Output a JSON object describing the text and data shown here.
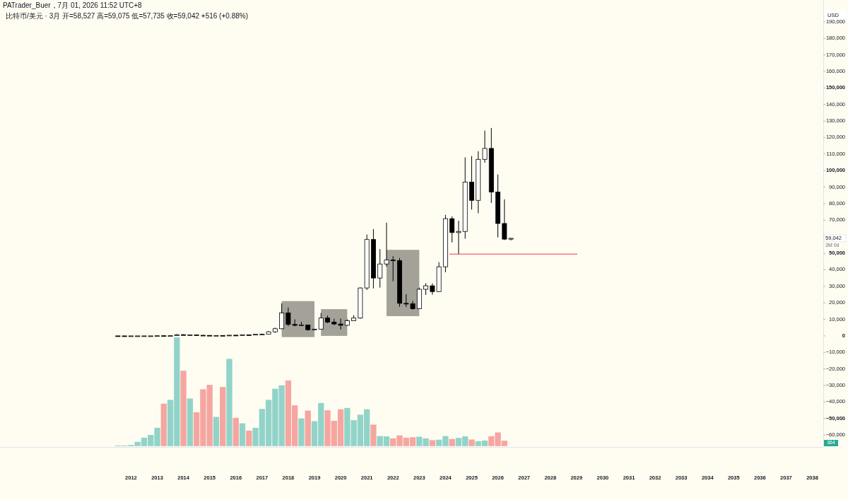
{
  "chart_data": {
    "type": "candlestick",
    "title": "PATrader_Buer，7月 01, 2026 11:52 UTC+8",
    "subtitle": "比特币/美元 · 3月  开=58,527  高=59,075  低=57,735  收=59,042  +516 (+0.88%)",
    "ylabel": "USD",
    "x": [
      "2011-07",
      "2011-10",
      "2012-01",
      "2012-04",
      "2012-07",
      "2012-10",
      "2013-01",
      "2013-04",
      "2013-07",
      "2013-10",
      "2014-01",
      "2014-04",
      "2014-07",
      "2014-10",
      "2015-01",
      "2015-04",
      "2015-07",
      "2015-10",
      "2016-01",
      "2016-04",
      "2016-07",
      "2016-10",
      "2017-01",
      "2017-04",
      "2017-07",
      "2017-10",
      "2018-01",
      "2018-04",
      "2018-07",
      "2018-10",
      "2019-01",
      "2019-04",
      "2019-07",
      "2019-10",
      "2020-01",
      "2020-04",
      "2020-07",
      "2020-10",
      "2021-01",
      "2021-04",
      "2021-07",
      "2021-10",
      "2022-01",
      "2022-04",
      "2022-07",
      "2022-10",
      "2023-01",
      "2023-04",
      "2023-07",
      "2023-10",
      "2024-01",
      "2024-04",
      "2024-07",
      "2024-10",
      "2025-01",
      "2025-04",
      "2025-07",
      "2025-10",
      "2026-01",
      "2026-04",
      "2026-07"
    ],
    "series": [
      {
        "type": "bar",
        "base": [
          -66700,
          -66700,
          -66700,
          -66700,
          -66700,
          -66700,
          -66700,
          -66700,
          -66700,
          -66700,
          -66700,
          -66700,
          -66700,
          -66700,
          -66700,
          -66700,
          -66700,
          -66700,
          -66700,
          -66700,
          -66700,
          -66700,
          -66700,
          -66700,
          -66700,
          -66700,
          -66700,
          -66700,
          -66700,
          -66700,
          -66700,
          -66700,
          -66700,
          -66700,
          -66700,
          -66700,
          -66700,
          -66700,
          -66700,
          -66700,
          -66700,
          -66700,
          -66700,
          -66700,
          -66700,
          -66700,
          -66700,
          -66700,
          -66700,
          -66700,
          -66700,
          -66700,
          -66700,
          -66700,
          -66700,
          -66700,
          -66700,
          -66700,
          -66700,
          -66700,
          null
        ],
        "values": [
          400,
          400,
          700,
          2600,
          5100,
          6800,
          11100,
          25700,
          28000,
          65800,
          45600,
          28800,
          20500,
          34400,
          37100,
          17700,
          35800,
          52800,
          17100,
          13800,
          9400,
          11100,
          22500,
          28000,
          34700,
          36800,
          39700,
          24700,
          16800,
          21500,
          15100,
          26100,
          21700,
          15300,
          22300,
          23100,
          15700,
          19000,
          22300,
          13000,
          6100,
          5900,
          4700,
          6500,
          5100,
          5400,
          5700,
          4700,
          3600,
          3900,
          6100,
          4300,
          5000,
          5900,
          4000,
          3000,
          3400,
          6000,
          8300,
          3300,
          null
        ],
        "colors": [
          "#92d3c9",
          "#92d3c9",
          "#92d3c9",
          "#92d3c9",
          "#92d3c9",
          "#92d3c9",
          "#92d3c9",
          "#f5a6a0",
          "#92d3c9",
          "#92d3c9",
          "#f5a6a0",
          "#92d3c9",
          "#f5a6a0",
          "#f5a6a0",
          "#f5a6a0",
          "#92d3c9",
          "#f5a6a0",
          "#92d3c9",
          "#f5a6a0",
          "#92d3c9",
          "#f5a6a0",
          "#92d3c9",
          "#92d3c9",
          "#92d3c9",
          "#92d3c9",
          "#92d3c9",
          "#f5a6a0",
          "#f5a6a0",
          "#92d3c9",
          "#f5a6a0",
          "#92d3c9",
          "#92d3c9",
          "#f5a6a0",
          "#f5a6a0",
          "#f5a6a0",
          "#92d3c9",
          "#92d3c9",
          "#92d3c9",
          "#92d3c9",
          "#f5a6a0",
          "#92d3c9",
          "#92d3c9",
          "#f5a6a0",
          "#f5a6a0",
          "#f5a6a0",
          "#f5a6a0",
          "#92d3c9",
          "#92d3c9",
          "#f5a6a0",
          "#92d3c9",
          "#92d3c9",
          "#f5a6a0",
          "#92d3c9",
          "#92d3c9",
          "#f5a6a0",
          "#92d3c9",
          "#92d3c9",
          "#f5a6a0",
          "#f5a6a0",
          "#f5a6a0",
          null
        ]
      },
      {
        "color": "#000000",
        "ohlc": [
          [
            13.5,
            17,
            2,
            5.1
          ],
          [
            5.1,
            6.9,
            2,
            4.7
          ],
          [
            4.7,
            7.2,
            4.2,
            4.9
          ],
          [
            4.9,
            7.2,
            4.8,
            6.7
          ],
          [
            6.7,
            15.4,
            6.5,
            12.4
          ],
          [
            12.4,
            14,
            9.6,
            13.5
          ],
          [
            13.5,
            266,
            13.3,
            104
          ],
          [
            104,
            260,
            50,
            97
          ],
          [
            97,
            150,
            65,
            128
          ],
          [
            128,
            1163,
            102,
            732
          ],
          [
            732,
            1000,
            380,
            445
          ],
          [
            445,
            680,
            340,
            640
          ],
          [
            640,
            650,
            370,
            385
          ],
          [
            385,
            450,
            275,
            320
          ],
          [
            320,
            320,
            152,
            244
          ],
          [
            244,
            266,
            212,
            263
          ],
          [
            263,
            317,
            199,
            236
          ],
          [
            236,
            502,
            236,
            430
          ],
          [
            430,
            465,
            352,
            416
          ],
          [
            416,
            780,
            413,
            673
          ],
          [
            673,
            673,
            470,
            609
          ],
          [
            609,
            980,
            604,
            966
          ],
          [
            966,
            1350,
            751,
            1079
          ],
          [
            1079,
            2999,
            1061,
            2480
          ],
          [
            2480,
            5000,
            1800,
            4340
          ],
          [
            4340,
            19666,
            4100,
            13880
          ],
          [
            13880,
            17180,
            5920,
            6930
          ],
          [
            6930,
            9990,
            5750,
            6390
          ],
          [
            6390,
            8500,
            5880,
            6630
          ],
          [
            6630,
            6800,
            3120,
            3740
          ],
          [
            3740,
            4140,
            3350,
            4100
          ],
          [
            4100,
            13880,
            4090,
            10820
          ],
          [
            10820,
            12320,
            7700,
            8290
          ],
          [
            8290,
            10400,
            6520,
            7200
          ],
          [
            7200,
            10500,
            3850,
            6410
          ],
          [
            6410,
            10070,
            6150,
            9130
          ],
          [
            9130,
            12480,
            8990,
            10780
          ],
          [
            10780,
            29300,
            10370,
            29000
          ],
          [
            29000,
            61300,
            27800,
            58300
          ],
          [
            58300,
            64600,
            28700,
            35000
          ],
          [
            35000,
            52500,
            29200,
            43500
          ],
          [
            43500,
            68500,
            41900,
            45900
          ],
          [
            45900,
            48200,
            33100,
            45500
          ],
          [
            45500,
            47100,
            17600,
            19700
          ],
          [
            19700,
            25200,
            17500,
            19400
          ],
          [
            19400,
            21100,
            15800,
            16400
          ],
          [
            16400,
            29200,
            16400,
            28200
          ],
          [
            28200,
            31800,
            24800,
            30300
          ],
          [
            30300,
            31800,
            24900,
            26800
          ],
          [
            26800,
            44600,
            26600,
            41800
          ],
          [
            41800,
            73200,
            38500,
            70900
          ],
          [
            70900,
            72300,
            56500,
            62500
          ],
          [
            62500,
            69700,
            49500,
            63200
          ],
          [
            63200,
            108000,
            58800,
            93000
          ],
          [
            93000,
            108800,
            76400,
            82000
          ],
          [
            82000,
            111700,
            74200,
            106800
          ],
          [
            106800,
            124200,
            104800,
            113400
          ],
          [
            113400,
            125800,
            80400,
            87000
          ],
          [
            87000,
            97600,
            59600,
            68000
          ],
          [
            68000,
            82600,
            58000,
            58527
          ],
          [
            58527,
            59075,
            57735,
            59042
          ]
        ]
      }
    ],
    "xlim": [
      "2007-01",
      "2038-06"
    ],
    "ylim": [
      -67200,
      203200
    ],
    "xticks": [
      "2012",
      "2013",
      "2014",
      "2015",
      "2016",
      "2017",
      "2018",
      "2019",
      "2020",
      "2021",
      "2022",
      "2023",
      "2024",
      "2025",
      "2026",
      "2027",
      "2028",
      "2029",
      "2030",
      "2031",
      "2032",
      "2033",
      "2034",
      "2035",
      "2036",
      "2037",
      "2038"
    ],
    "yticks": [
      {
        "value": -60000,
        "label": "−60,000"
      },
      {
        "value": -50000,
        "label": "−50,000"
      },
      {
        "value": -40000,
        "label": "−40,000"
      },
      {
        "value": -30000,
        "label": "−30,000"
      },
      {
        "value": -20000,
        "label": "−20,000"
      },
      {
        "value": -10000,
        "label": "−10,000"
      },
      0,
      {
        "value": 10000,
        "label": "10,000"
      },
      {
        "value": 20000,
        "label": "20,000"
      },
      {
        "value": 30000,
        "label": "30,000"
      },
      {
        "value": 40000,
        "label": "40,000"
      },
      {
        "value": 50000,
        "label": "50,000"
      },
      {
        "value": 60000,
        "label": null
      },
      {
        "value": 70000,
        "label": "70,000"
      },
      {
        "value": 80000,
        "label": "80,000"
      },
      {
        "value": 90000,
        "label": "90,000"
      },
      {
        "value": 100000,
        "label": "100,000"
      },
      {
        "value": 110000,
        "label": "110,000"
      },
      {
        "value": 120000,
        "label": "120,000"
      },
      {
        "value": 130000,
        "label": "130,000"
      },
      {
        "value": 140000,
        "label": "140,000"
      },
      {
        "value": 150000,
        "label": "150,000"
      },
      {
        "value": 160000,
        "label": "160,000"
      },
      {
        "value": 170000,
        "label": "170,000"
      },
      {
        "value": 180000,
        "label": "180,000"
      },
      {
        "value": 190000,
        "label": "190,000"
      }
    ],
    "ref_lines": [
      {
        "axis": "y",
        "value": 49500,
        "color": "#f23645"
      }
    ],
    "bands": [
      {
        "axis": "x",
        "from": "2017-10",
        "to": "2019-01",
        "color": "#a3a198"
      },
      {
        "axis": "x",
        "from": "2019-04",
        "to": "2020-04",
        "color": "#a3a198"
      },
      {
        "axis": "x",
        "from": "2021-10",
        "to": "2023-01",
        "color": "#a3a198"
      }
    ],
    "annotations": [
      "59,042",
      "3M 0d",
      "364"
    ]
  }
}
